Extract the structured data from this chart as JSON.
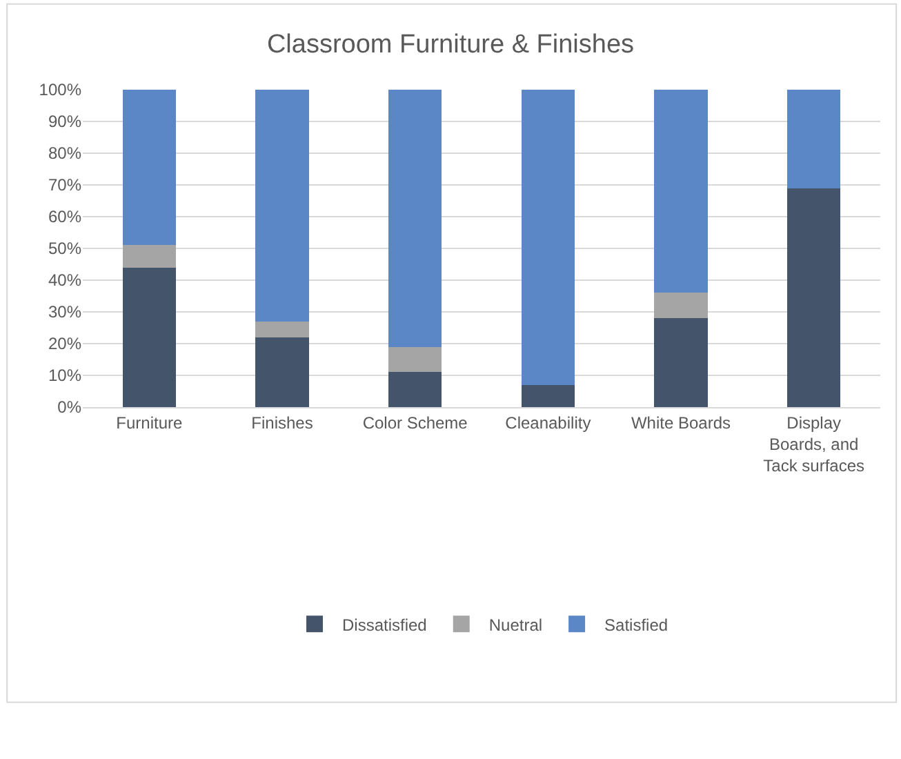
{
  "chart_data": {
    "type": "bar",
    "title": "Classroom Furniture & Finishes",
    "stacked": true,
    "categories": [
      "Furniture",
      "Finishes",
      "Color Scheme",
      "Cleanability",
      "White Boards",
      "Display Boards, and Tack surfaces"
    ],
    "series": [
      {
        "name": "Dissatisfied",
        "color": "#44546a",
        "values": [
          44,
          22,
          11,
          7,
          28,
          69
        ]
      },
      {
        "name": "Nuetral",
        "color": "#a5a5a5",
        "values": [
          7,
          5,
          8,
          0,
          8,
          0
        ]
      },
      {
        "name": "Satisfied",
        "color": "#5b87c7",
        "values": [
          49,
          73,
          81,
          93,
          64,
          31
        ]
      }
    ],
    "ylim": [
      0,
      100
    ],
    "yticks": [
      {
        "value": 0,
        "label": "0%"
      },
      {
        "value": 10,
        "label": "10%"
      },
      {
        "value": 20,
        "label": "20%"
      },
      {
        "value": 30,
        "label": "30%"
      },
      {
        "value": 40,
        "label": "40%"
      },
      {
        "value": 50,
        "label": "50%"
      },
      {
        "value": 60,
        "label": "60%"
      },
      {
        "value": 70,
        "label": "70%"
      },
      {
        "value": 80,
        "label": "80%"
      },
      {
        "value": 90,
        "label": "90%"
      },
      {
        "value": 100,
        "label": "100%"
      }
    ],
    "grid": "y",
    "legend": "bottom"
  }
}
